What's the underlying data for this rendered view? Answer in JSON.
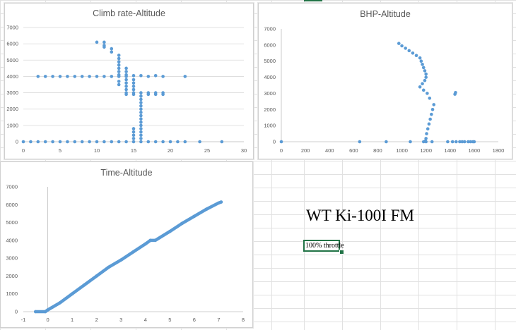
{
  "sheet": {
    "title": "WT Ki-100I FM",
    "note": "100% throttle",
    "accent_color": "#217346",
    "grid_color": "#e1e1e1"
  },
  "chart_data": [
    {
      "type": "scatter",
      "title": "Climb rate-Altitude",
      "xlim": [
        0,
        30
      ],
      "ylim": [
        0,
        7000
      ],
      "x_ticks": [
        "0",
        "5",
        "10",
        "15",
        "20",
        "25",
        "30"
      ],
      "y_ticks": [
        "0",
        "1000",
        "2000",
        "3000",
        "4000",
        "5000",
        "6000",
        "7000"
      ],
      "color": "#5b9bd5",
      "grid": true,
      "points": [
        [
          0,
          0
        ],
        [
          1,
          0
        ],
        [
          2,
          0
        ],
        [
          3,
          0
        ],
        [
          4,
          0
        ],
        [
          5,
          0
        ],
        [
          6,
          0
        ],
        [
          7,
          0
        ],
        [
          8,
          0
        ],
        [
          9,
          0
        ],
        [
          10,
          0
        ],
        [
          11,
          0
        ],
        [
          12,
          0
        ],
        [
          13,
          0
        ],
        [
          14,
          0
        ],
        [
          15,
          0
        ],
        [
          16,
          0
        ],
        [
          17,
          0
        ],
        [
          18,
          0
        ],
        [
          19,
          0
        ],
        [
          20,
          0
        ],
        [
          21,
          0
        ],
        [
          22,
          0
        ],
        [
          24,
          0
        ],
        [
          27,
          0
        ],
        [
          2,
          4000
        ],
        [
          3,
          4000
        ],
        [
          4,
          4000
        ],
        [
          5,
          4000
        ],
        [
          6,
          4000
        ],
        [
          7,
          4000
        ],
        [
          8,
          4000
        ],
        [
          9,
          4000
        ],
        [
          10,
          4000
        ],
        [
          11,
          4000
        ],
        [
          12,
          4000
        ],
        [
          13,
          4000
        ],
        [
          14,
          4000
        ],
        [
          15,
          4050
        ],
        [
          16,
          4050
        ],
        [
          17,
          4000
        ],
        [
          18,
          4050
        ],
        [
          19,
          4000
        ],
        [
          22,
          4000
        ],
        [
          14,
          3000
        ],
        [
          15,
          3000
        ],
        [
          16,
          3000
        ],
        [
          17,
          3000
        ],
        [
          18,
          3000
        ],
        [
          19,
          3000
        ],
        [
          14,
          2900
        ],
        [
          15,
          2900
        ],
        [
          17,
          2900
        ],
        [
          18,
          2900
        ],
        [
          19,
          2900
        ],
        [
          10,
          6100
        ],
        [
          11,
          6100
        ],
        [
          11,
          5900
        ],
        [
          11,
          5800
        ],
        [
          12,
          5700
        ],
        [
          12,
          5500
        ],
        [
          13,
          5300
        ],
        [
          13,
          5100
        ],
        [
          13,
          4900
        ],
        [
          13,
          4700
        ],
        [
          13,
          4500
        ],
        [
          13,
          4300
        ],
        [
          13,
          4100
        ],
        [
          13,
          3700
        ],
        [
          13,
          3500
        ],
        [
          14,
          4500
        ],
        [
          14,
          4300
        ],
        [
          14,
          4100
        ],
        [
          14,
          3800
        ],
        [
          14,
          3600
        ],
        [
          14,
          3400
        ],
        [
          14,
          3200
        ],
        [
          15,
          3800
        ],
        [
          15,
          3600
        ],
        [
          15,
          3400
        ],
        [
          15,
          3200
        ],
        [
          15,
          800
        ],
        [
          15,
          600
        ],
        [
          15,
          400
        ],
        [
          15,
          200
        ],
        [
          16,
          2800
        ],
        [
          16,
          2600
        ],
        [
          16,
          2400
        ],
        [
          16,
          2200
        ],
        [
          16,
          2000
        ],
        [
          16,
          1800
        ],
        [
          16,
          1600
        ],
        [
          16,
          1400
        ],
        [
          16,
          1200
        ],
        [
          16,
          1000
        ],
        [
          16,
          800
        ],
        [
          16,
          600
        ],
        [
          16,
          400
        ],
        [
          16,
          200
        ]
      ]
    },
    {
      "type": "scatter",
      "title": "BHP-Altitude",
      "xlim": [
        0,
        1800
      ],
      "ylim": [
        0,
        7000
      ],
      "x_ticks": [
        "0",
        "200",
        "400",
        "600",
        "800",
        "1000",
        "1200",
        "1400",
        "1600",
        "1800"
      ],
      "y_ticks": [
        "0",
        "1000",
        "2000",
        "3000",
        "4000",
        "5000",
        "6000",
        "7000"
      ],
      "color": "#5b9bd5",
      "grid": false,
      "points": [
        [
          0,
          0
        ],
        [
          650,
          0
        ],
        [
          870,
          0
        ],
        [
          1070,
          0
        ],
        [
          1180,
          0
        ],
        [
          1200,
          0
        ],
        [
          1250,
          0
        ],
        [
          1380,
          0
        ],
        [
          1420,
          0
        ],
        [
          1450,
          0
        ],
        [
          1480,
          0
        ],
        [
          1500,
          0
        ],
        [
          1520,
          0
        ],
        [
          1550,
          0
        ],
        [
          1570,
          0
        ],
        [
          1590,
          0
        ],
        [
          1600,
          0
        ],
        [
          1440,
          2950
        ],
        [
          1445,
          3050
        ],
        [
          975,
          6100
        ],
        [
          1000,
          5950
        ],
        [
          1030,
          5800
        ],
        [
          1060,
          5650
        ],
        [
          1090,
          5500
        ],
        [
          1120,
          5350
        ],
        [
          1150,
          5200
        ],
        [
          1160,
          5000
        ],
        [
          1170,
          4800
        ],
        [
          1180,
          4600
        ],
        [
          1190,
          4400
        ],
        [
          1200,
          4200
        ],
        [
          1200,
          4000
        ],
        [
          1190,
          3800
        ],
        [
          1170,
          3600
        ],
        [
          1150,
          3400
        ],
        [
          1180,
          3200
        ],
        [
          1210,
          3000
        ],
        [
          1230,
          2700
        ],
        [
          1265,
          2300
        ],
        [
          1255,
          2000
        ],
        [
          1245,
          1700
        ],
        [
          1235,
          1400
        ],
        [
          1225,
          1100
        ],
        [
          1215,
          800
        ],
        [
          1205,
          500
        ],
        [
          1200,
          200
        ],
        [
          1195,
          50
        ]
      ]
    },
    {
      "type": "line",
      "title": "Time-Altitude",
      "xlim": [
        -1,
        8
      ],
      "ylim": [
        0,
        7000
      ],
      "x_ticks": [
        "-1",
        "0",
        "1",
        "2",
        "3",
        "4",
        "5",
        "6",
        "7",
        "8"
      ],
      "y_ticks": [
        "0",
        "1000",
        "2000",
        "3000",
        "4000",
        "5000",
        "6000",
        "7000"
      ],
      "color": "#5b9bd5",
      "grid": false,
      "points": [
        [
          -0.5,
          0
        ],
        [
          -0.1,
          0
        ],
        [
          0,
          100
        ],
        [
          0.5,
          500
        ],
        [
          1,
          1000
        ],
        [
          1.5,
          1500
        ],
        [
          2,
          2000
        ],
        [
          2.5,
          2500
        ],
        [
          3,
          2900
        ],
        [
          3.5,
          3350
        ],
        [
          4,
          3800
        ],
        [
          4.2,
          4000
        ],
        [
          4.4,
          4000
        ],
        [
          5,
          4500
        ],
        [
          5.5,
          4950
        ],
        [
          6,
          5350
        ],
        [
          6.5,
          5750
        ],
        [
          7,
          6100
        ],
        [
          7.1,
          6150
        ]
      ]
    }
  ]
}
